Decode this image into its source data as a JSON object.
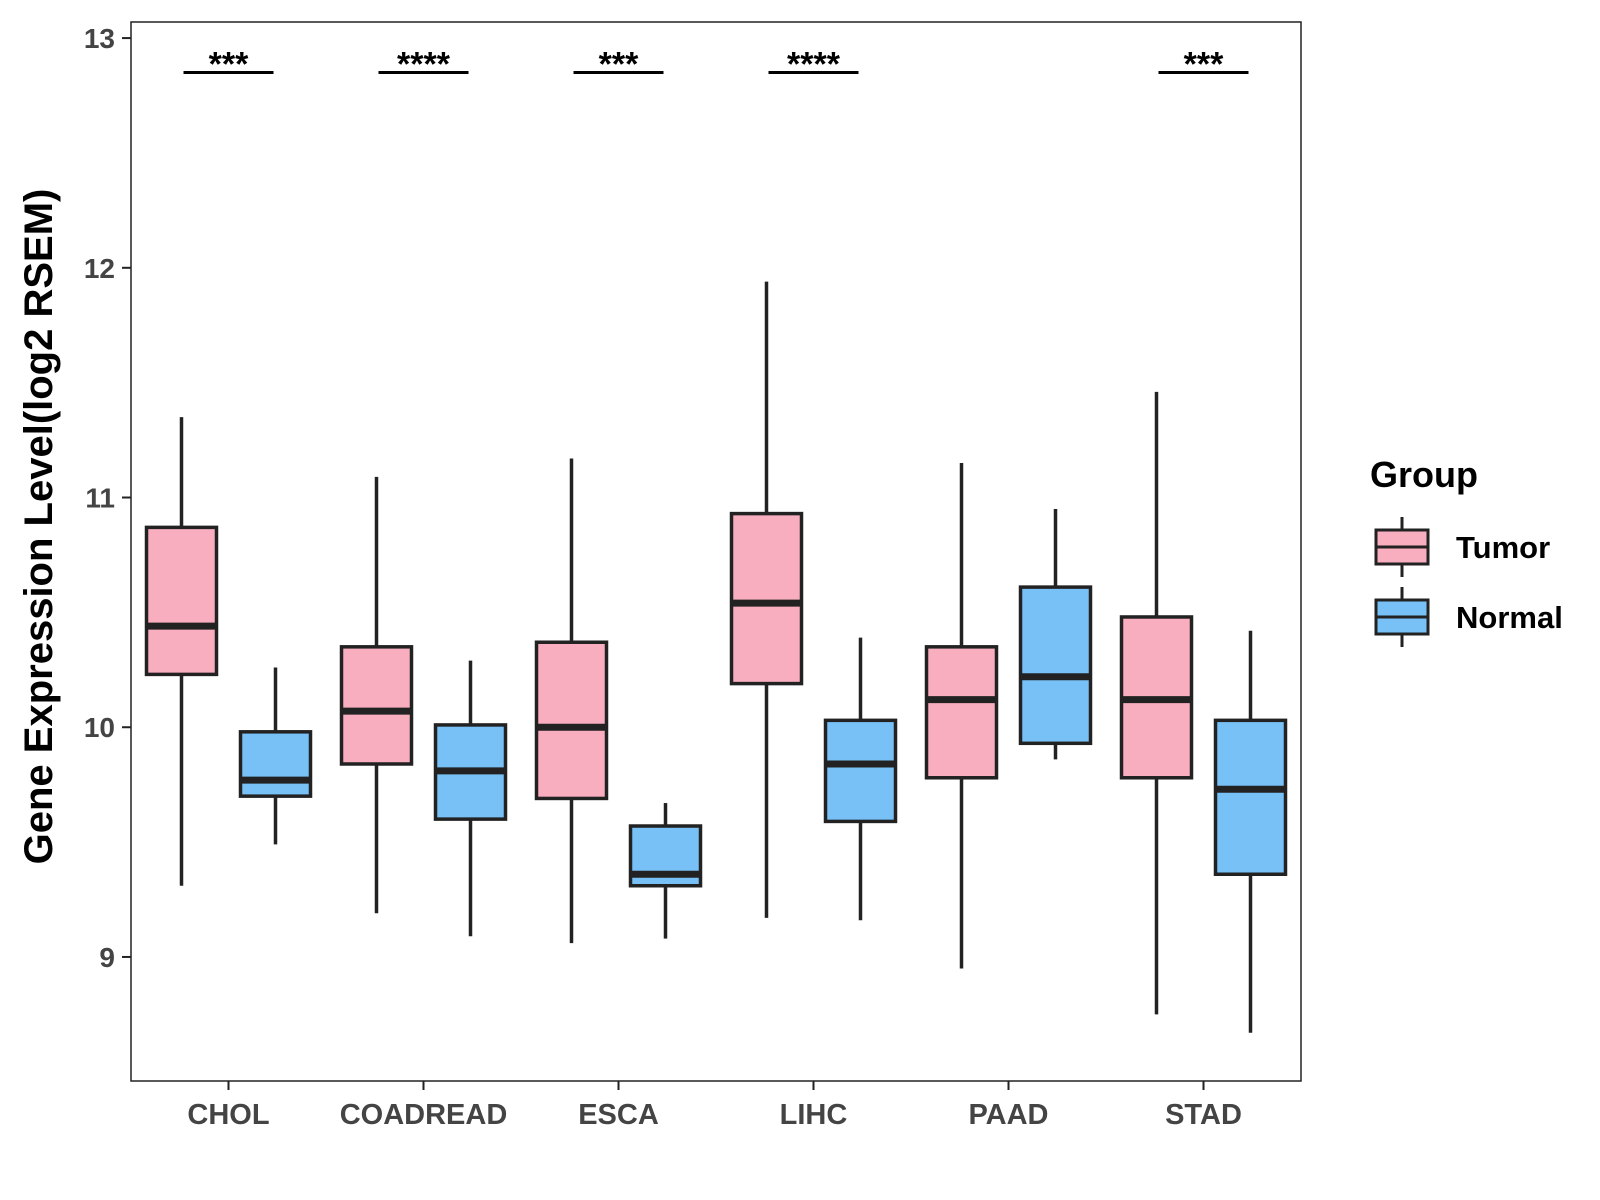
{
  "chart_data": {
    "type": "boxplot",
    "ylabel": "Gene Expression Level(log2 RSEM)",
    "xlabel": "",
    "ylim": [
      8.46,
      13.07
    ],
    "yticks": [
      9,
      10,
      11,
      12,
      13
    ],
    "categories": [
      "CHOL",
      "COADREAD",
      "ESCA",
      "LIHC",
      "PAAD",
      "STAD"
    ],
    "legend": {
      "title": "Group",
      "position": "right",
      "entries": [
        {
          "name": "Tumor",
          "color": "#F9AEC0"
        },
        {
          "name": "Normal",
          "color": "#77C1F7"
        }
      ]
    },
    "series": [
      {
        "name": "Tumor",
        "color": "#F9AEC0",
        "boxes": [
          {
            "category": "CHOL",
            "min": 9.31,
            "q1": 10.23,
            "median": 10.44,
            "q3": 10.87,
            "max": 11.35
          },
          {
            "category": "COADREAD",
            "min": 9.19,
            "q1": 9.84,
            "median": 10.07,
            "q3": 10.35,
            "max": 11.09
          },
          {
            "category": "ESCA",
            "min": 9.06,
            "q1": 9.69,
            "median": 10.0,
            "q3": 10.37,
            "max": 11.17
          },
          {
            "category": "LIHC",
            "min": 9.17,
            "q1": 10.19,
            "median": 10.54,
            "q3": 10.93,
            "max": 11.94
          },
          {
            "category": "PAAD",
            "min": 8.95,
            "q1": 9.78,
            "median": 10.12,
            "q3": 10.35,
            "max": 11.15
          },
          {
            "category": "STAD",
            "min": 8.75,
            "q1": 9.78,
            "median": 10.12,
            "q3": 10.48,
            "max": 11.46
          }
        ]
      },
      {
        "name": "Normal",
        "color": "#77C1F7",
        "boxes": [
          {
            "category": "CHOL",
            "min": 9.49,
            "q1": 9.7,
            "median": 9.77,
            "q3": 9.98,
            "max": 10.26
          },
          {
            "category": "COADREAD",
            "min": 9.09,
            "q1": 9.6,
            "median": 9.81,
            "q3": 10.01,
            "max": 10.29
          },
          {
            "category": "ESCA",
            "min": 9.08,
            "q1": 9.31,
            "median": 9.36,
            "q3": 9.57,
            "max": 9.67
          },
          {
            "category": "LIHC",
            "min": 9.16,
            "q1": 9.59,
            "median": 9.84,
            "q3": 10.03,
            "max": 10.39
          },
          {
            "category": "PAAD",
            "min": 9.86,
            "q1": 9.93,
            "median": 10.22,
            "q3": 10.61,
            "max": 10.95
          },
          {
            "category": "STAD",
            "min": 8.67,
            "q1": 9.36,
            "median": 9.73,
            "q3": 10.03,
            "max": 10.42
          }
        ]
      }
    ],
    "significance": [
      {
        "category": "CHOL",
        "label": "***",
        "y": 12.85
      },
      {
        "category": "COADREAD",
        "label": "****",
        "y": 12.85
      },
      {
        "category": "ESCA",
        "label": "***",
        "y": 12.85
      },
      {
        "category": "LIHC",
        "label": "****",
        "y": 12.85
      },
      {
        "category": "STAD",
        "label": "***",
        "y": 12.85
      }
    ],
    "grid": false
  }
}
